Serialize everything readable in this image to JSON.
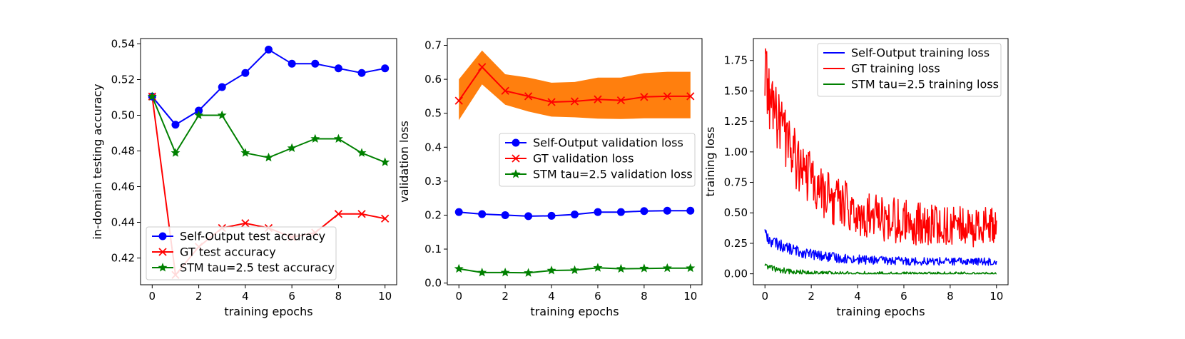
{
  "chart_data": [
    {
      "type": "line",
      "xlabel": "training epochs",
      "ylabel": "in-domain testing accuracy",
      "xlim": [
        -0.5,
        10.5
      ],
      "ylim": [
        0.405,
        0.543
      ],
      "xticks": [
        0,
        2,
        4,
        6,
        8,
        10
      ],
      "xtick_labels": [
        "0",
        "2",
        "4",
        "6",
        "8",
        "10"
      ],
      "yticks": [
        0.42,
        0.44,
        0.46,
        0.48,
        0.5,
        0.52,
        0.54
      ],
      "ytick_labels": [
        "0.42",
        "0.44",
        "0.46",
        "0.48",
        "0.50",
        "0.52",
        "0.54"
      ],
      "legend_position": "lower-left",
      "x": [
        0,
        1,
        2,
        3,
        4,
        5,
        6,
        7,
        8,
        9,
        10
      ],
      "series": [
        {
          "name": "Self-Output test accuracy",
          "color": "#0000ff",
          "marker": "circle",
          "values": [
            0.5105,
            0.4947,
            0.5026,
            0.5158,
            0.5237,
            0.5368,
            0.5289,
            0.5289,
            0.5263,
            0.5237,
            0.5263
          ]
        },
        {
          "name": "GT test accuracy",
          "color": "#ff0000",
          "marker": "x",
          "values": [
            0.5105,
            0.4105,
            0.4263,
            0.4368,
            0.4395,
            0.4368,
            0.4316,
            0.4342,
            0.4447,
            0.4447,
            0.4421
          ]
        },
        {
          "name": "STM tau=2.5 test accuracy",
          "color": "#008000",
          "marker": "star",
          "values": [
            0.5105,
            0.4789,
            0.5,
            0.5,
            0.4789,
            0.4763,
            0.4816,
            0.4868,
            0.4868,
            0.4789,
            0.4737
          ]
        }
      ]
    },
    {
      "type": "line",
      "xlabel": "training epochs",
      "ylabel": "validation loss",
      "xlim": [
        -0.5,
        10.5
      ],
      "ylim": [
        -0.005,
        0.72
      ],
      "xticks": [
        0,
        2,
        4,
        6,
        8,
        10
      ],
      "xtick_labels": [
        "0",
        "2",
        "4",
        "6",
        "8",
        "10"
      ],
      "yticks": [
        0.0,
        0.1,
        0.2,
        0.3,
        0.4,
        0.5,
        0.6,
        0.7
      ],
      "ytick_labels": [
        "0.0",
        "0.1",
        "0.2",
        "0.3",
        "0.4",
        "0.5",
        "0.6",
        "0.7"
      ],
      "legend_position": "center-right",
      "x": [
        0,
        1,
        2,
        3,
        4,
        5,
        6,
        7,
        8,
        9,
        10
      ],
      "band": {
        "color": "#ff7f0e",
        "lower": [
          0.48,
          0.585,
          0.525,
          0.505,
          0.49,
          0.488,
          0.484,
          0.483,
          0.485,
          0.485,
          0.485
        ],
        "upper": [
          0.6,
          0.685,
          0.615,
          0.605,
          0.59,
          0.592,
          0.605,
          0.605,
          0.618,
          0.622,
          0.622
        ]
      },
      "series": [
        {
          "name": "Self-Output validation loss",
          "color": "#0000ff",
          "marker": "circle",
          "values": [
            0.209,
            0.203,
            0.2,
            0.197,
            0.198,
            0.202,
            0.209,
            0.209,
            0.212,
            0.213,
            0.213
          ]
        },
        {
          "name": "GT validation loss",
          "color": "#ff0000",
          "marker": "x",
          "values": [
            0.537,
            0.636,
            0.566,
            0.55,
            0.533,
            0.535,
            0.541,
            0.538,
            0.548,
            0.55,
            0.55
          ]
        },
        {
          "name": "STM tau=2.5 validation loss",
          "color": "#008000",
          "marker": "star",
          "values": [
            0.042,
            0.031,
            0.031,
            0.03,
            0.037,
            0.038,
            0.045,
            0.042,
            0.043,
            0.044,
            0.044
          ]
        }
      ]
    },
    {
      "type": "line",
      "xlabel": "training epochs",
      "ylabel": "training loss",
      "xlim": [
        -0.5,
        10.5
      ],
      "ylim": [
        -0.09,
        1.93
      ],
      "xticks": [
        0,
        2,
        4,
        6,
        8,
        10
      ],
      "xtick_labels": [
        "0",
        "2",
        "4",
        "6",
        "8",
        "10"
      ],
      "yticks": [
        0.0,
        0.25,
        0.5,
        0.75,
        1.0,
        1.25,
        1.5,
        1.75
      ],
      "ytick_labels": [
        "0.00",
        "0.25",
        "0.50",
        "0.75",
        "1.00",
        "1.25",
        "1.50",
        "1.75"
      ],
      "legend_position": "upper-right",
      "series": [
        {
          "name": "Self-Output training loss",
          "color": "#0000ff",
          "x_range": [
            0,
            10
          ],
          "start": 0.3,
          "end": 0.1,
          "decay": 0.6,
          "noise": 0.05,
          "spike": [
            0.02,
            0.37
          ]
        },
        {
          "name": "GT training loss",
          "color": "#ff0000",
          "x_range": [
            0,
            10
          ],
          "start": 1.55,
          "end": 0.38,
          "decay": 0.55,
          "noise": 0.27,
          "spike": [
            0.05,
            1.85
          ]
        },
        {
          "name": "STM tau=2.5 training loss",
          "color": "#008000",
          "x_range": [
            0,
            10
          ],
          "start": 0.07,
          "end": 0.0,
          "decay": 1.2,
          "noise": 0.025,
          "spike": [
            0.01,
            0.1
          ]
        }
      ]
    }
  ]
}
